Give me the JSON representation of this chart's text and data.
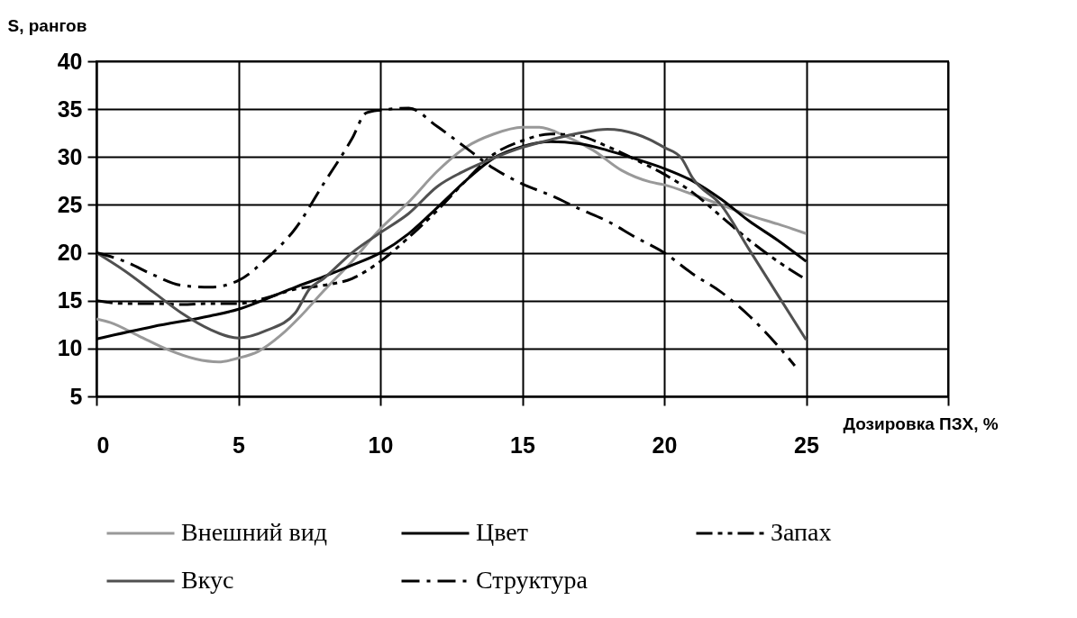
{
  "chart_data": {
    "type": "line",
    "xlabel": "Дозировка ПЗХ, %",
    "ylabel": "S, рангов",
    "xlim": [
      0,
      30
    ],
    "xticks": [
      0,
      5,
      10,
      15,
      20,
      25,
      {
        "value": 30,
        "label": null
      }
    ],
    "ylim": [
      5,
      40
    ],
    "yticks": [
      5,
      10,
      15,
      20,
      25,
      30,
      35,
      40
    ],
    "grid": true,
    "legend": "bottom",
    "series": [
      {
        "name": "Внешний вид",
        "color": "#999999",
        "line_style": "solid",
        "x": [
          0,
          0.5,
          1.5,
          2.5,
          3.5,
          4.3,
          5,
          5.7,
          6.5,
          7.2,
          8,
          9,
          10,
          11,
          12,
          13,
          14,
          15,
          15.6,
          16.5,
          17.5,
          18.5,
          19.5,
          20,
          21,
          22,
          23,
          24,
          25
        ],
        "values": [
          13.1,
          12.7,
          11.3,
          9.9,
          8.9,
          8.6,
          9,
          9.7,
          11.4,
          13.4,
          16,
          19.1,
          22.5,
          25.3,
          28.5,
          31,
          32.4,
          33.1,
          33.1,
          32.2,
          30.7,
          28.6,
          27.4,
          27.1,
          26.1,
          25,
          23.9,
          23,
          22
        ]
      },
      {
        "name": "Цвет",
        "color": "#000000",
        "line_style": "solid",
        "x": [
          0,
          2,
          4,
          5,
          6,
          7,
          8,
          9,
          10,
          11,
          12,
          13,
          14,
          15,
          16,
          17,
          18,
          19,
          20,
          21,
          22,
          23,
          24,
          25
        ],
        "values": [
          11,
          12.3,
          13.4,
          14.1,
          15.2,
          16.4,
          17.5,
          18.7,
          20,
          22,
          24.7,
          27.5,
          29.9,
          31.1,
          31.6,
          31.4,
          30.7,
          29.8,
          28.8,
          27.5,
          25.6,
          23.3,
          21.3,
          19.1
        ]
      },
      {
        "name": "Запах",
        "color": "#000000",
        "line_style": "dashed",
        "x": [
          0,
          1,
          2,
          3,
          4,
          5,
          6,
          7,
          8,
          9,
          10,
          11,
          12,
          13,
          14,
          15,
          16,
          17,
          18,
          19,
          20,
          21,
          22,
          23,
          24,
          25
        ],
        "values": [
          15,
          14.7,
          14.7,
          14.6,
          14.7,
          14.7,
          15.3,
          16.2,
          16.6,
          17.3,
          19.1,
          21.6,
          24.4,
          27.5,
          30.3,
          31.7,
          32.4,
          32.2,
          31.1,
          29.7,
          28.2,
          26.3,
          23.8,
          21.3,
          19.1,
          17.2
        ]
      },
      {
        "name": "Вкус",
        "color": "#505050",
        "line_style": "solid",
        "x": [
          0,
          1,
          2,
          3,
          4,
          5,
          6,
          7,
          7.5,
          8,
          9,
          10,
          11,
          12,
          13,
          14,
          15,
          16,
          17,
          18,
          19,
          19.5,
          20,
          20.6,
          21,
          22,
          23,
          24,
          25
        ],
        "values": [
          20,
          18.1,
          15.9,
          13.7,
          12,
          11.1,
          11.9,
          13.7,
          16.2,
          17.3,
          20,
          22.1,
          24.1,
          26.9,
          28.6,
          29.9,
          31,
          31.8,
          32.5,
          32.9,
          32.4,
          31.8,
          31,
          29.9,
          27.8,
          25,
          20.3,
          15.6,
          10.9
        ]
      },
      {
        "name": "Структура",
        "color": "#000000",
        "line_style": "dashdot",
        "x": [
          0,
          1,
          2,
          3,
          4,
          5,
          6,
          7,
          8,
          9,
          9.5,
          10,
          11,
          12,
          13,
          14,
          15,
          16,
          17,
          18,
          19,
          20,
          21,
          22,
          23,
          24,
          24.6
        ],
        "values": [
          20,
          19.1,
          17.7,
          16.6,
          16.4,
          17.1,
          19.4,
          22.5,
          27.2,
          31.9,
          34.6,
          34.9,
          35.1,
          33.2,
          31,
          28.8,
          27.2,
          26,
          24.6,
          23.3,
          21.6,
          20,
          17.8,
          15.9,
          13.4,
          10.3,
          8.2
        ]
      }
    ]
  }
}
